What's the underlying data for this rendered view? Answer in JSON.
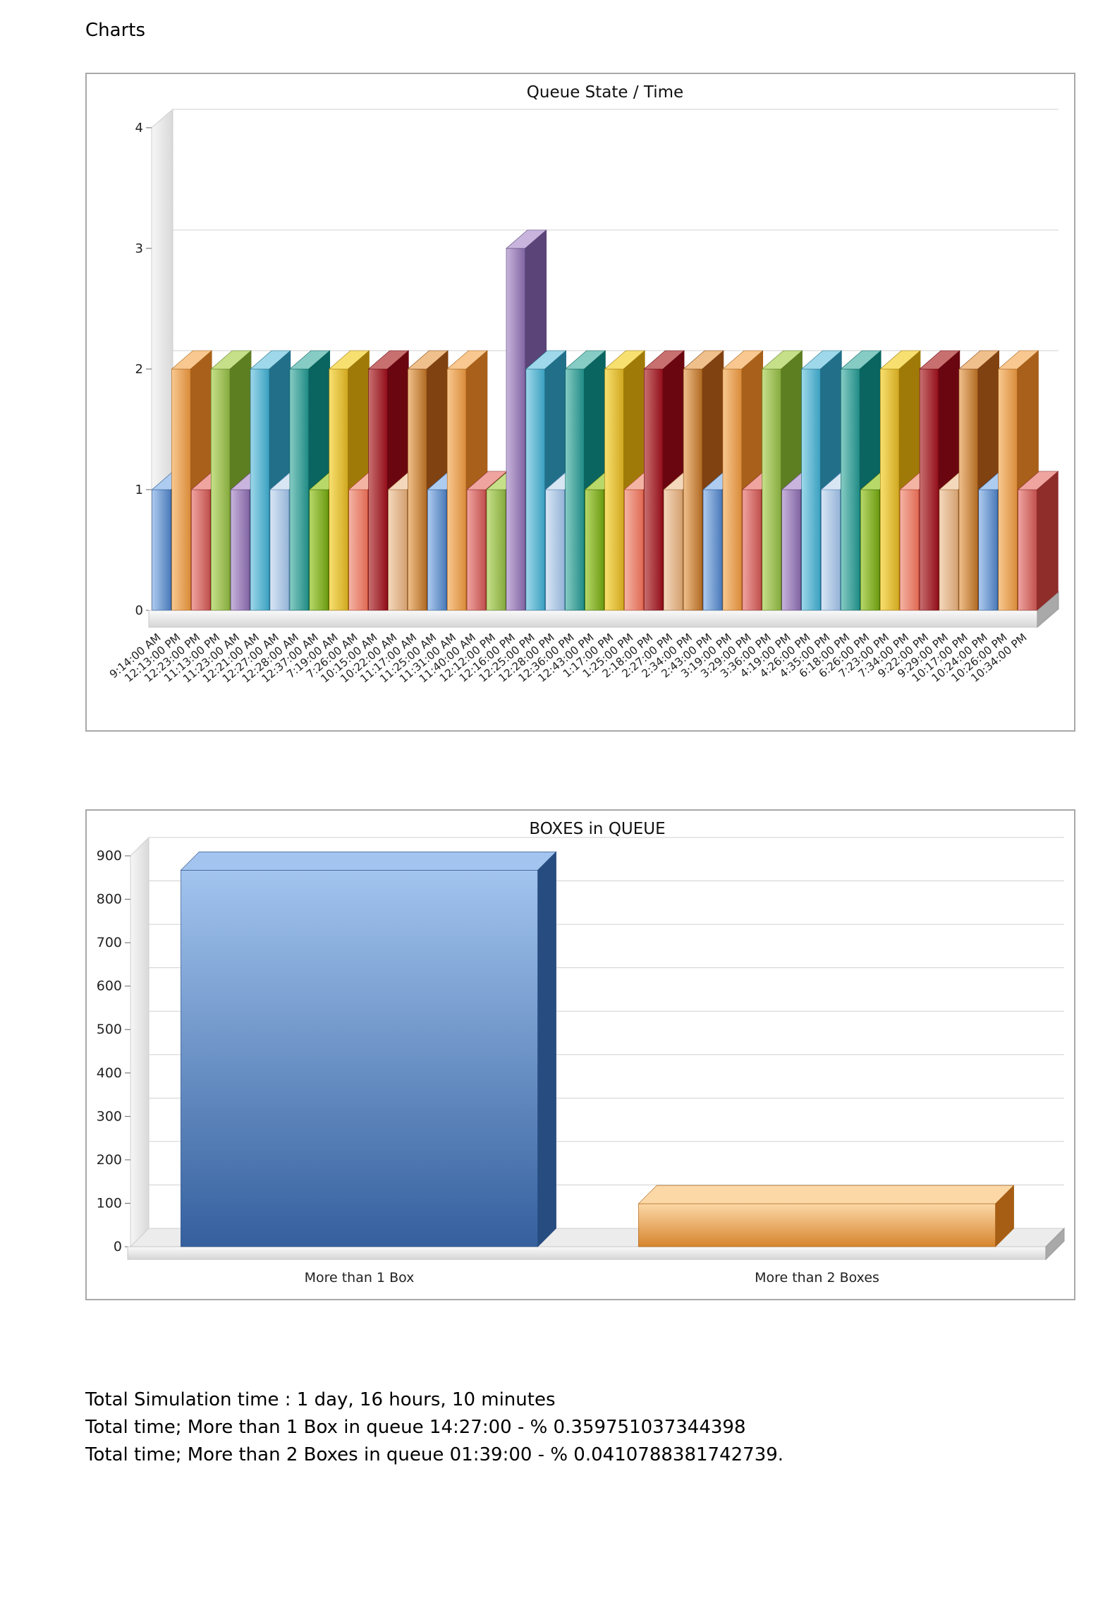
{
  "heading": "Charts",
  "colors": {
    "palette": [
      [
        "#aecbf0",
        "#4a7ab8",
        "#2d5a93"
      ],
      [
        "#f8c890",
        "#d98b3a",
        "#a8601a"
      ],
      [
        "#f0a4a0",
        "#c0504d",
        "#8e2d2a"
      ],
      [
        "#c6e08a",
        "#86aa3e",
        "#5e7e22"
      ],
      [
        "#c8b4dc",
        "#8064a2",
        "#5a4478"
      ],
      [
        "#9ed8ea",
        "#3aa0c0",
        "#226f8a"
      ],
      [
        "#d8e6f4",
        "#95b3d7",
        "#5f86b4"
      ],
      [
        "#86ccc4",
        "#1f8a84",
        "#0a6460"
      ],
      [
        "#b8d86a",
        "#6b9a10",
        "#4a7006"
      ],
      [
        "#f8e070",
        "#d0a820",
        "#a07a08"
      ],
      [
        "#f4b4a4",
        "#e06a54",
        "#b0402c"
      ],
      [
        "#c87070",
        "#920d1a",
        "#6a0610"
      ],
      [
        "#f4d8bc",
        "#d4a070",
        "#a0703c"
      ],
      [
        "#f0c08c",
        "#b06a22",
        "#804210"
      ]
    ],
    "chart2_series": [
      [
        "#a2c4ee",
        "#35609e",
        "#274c80"
      ],
      [
        "#fcd8a6",
        "#d6852e",
        "#a65e14"
      ]
    ]
  },
  "chart_data": [
    {
      "type": "bar",
      "title": "Queue State / Time",
      "xlabel": "",
      "ylabel": "",
      "ylim": [
        0,
        4
      ],
      "yticks": [
        "0",
        "1",
        "2",
        "3",
        "4"
      ],
      "grid": true,
      "legend": "none",
      "categories": [
        "9:14:00 AM",
        "12:13:00 PM",
        "12:23:00 PM",
        "11:13:00 PM",
        "11:23:00 AM",
        "12:21:00 AM",
        "12:27:00 AM",
        "12:28:00 AM",
        "12:37:00 AM",
        "7:19:00 AM",
        "7:26:00 AM",
        "10:15:00 AM",
        "10:22:00 AM",
        "11:17:00 AM",
        "11:25:00 AM",
        "11:31:00 AM",
        "11:40:00 AM",
        "12:12:00 PM",
        "12:16:00 PM",
        "12:25:00 PM",
        "12:28:00 PM",
        "12:36:00 PM",
        "12:43:00 PM",
        "1:17:00 PM",
        "1:25:00 PM",
        "2:18:00 PM",
        "2:27:00 PM",
        "2:34:00 PM",
        "2:43:00 PM",
        "3:19:00 PM",
        "3:29:00 PM",
        "3:36:00 PM",
        "4:19:00 PM",
        "4:26:00 PM",
        "4:35:00 PM",
        "6:18:00 PM",
        "6:26:00 PM",
        "7:23:00 PM",
        "7:34:00 PM",
        "9:22:00 PM",
        "9:29:00 PM",
        "10:17:00 PM",
        "10:24:00 PM",
        "10:26:00 PM",
        "10:34:00 PM"
      ],
      "values": [
        1,
        2,
        1,
        2,
        1,
        2,
        1,
        2,
        1,
        2,
        1,
        2,
        1,
        2,
        1,
        2,
        1,
        1,
        3,
        2,
        1,
        2,
        1,
        2,
        1,
        2,
        1,
        2,
        1,
        2,
        1,
        2,
        1,
        2,
        1,
        2,
        1,
        2,
        1,
        2,
        1,
        2,
        1,
        2,
        1
      ]
    },
    {
      "type": "bar",
      "title": "BOXES in QUEUE",
      "xlabel": "",
      "ylabel": "",
      "ylim": [
        0,
        900
      ],
      "yticks": [
        "0",
        "100",
        "200",
        "300",
        "400",
        "500",
        "600",
        "700",
        "800",
        "900"
      ],
      "grid": true,
      "legend": "none",
      "categories": [
        "More than 1 Box",
        "More than 2 Boxes"
      ],
      "values": [
        867,
        99
      ]
    }
  ],
  "summary": {
    "line1": "Total Simulation time : 1 day, 16 hours, 10 minutes",
    "line2": "Total time; More than 1 Box in queue 14:27:00 - % 0.359751037344398",
    "line3": "Total time; More than 2 Boxes in queue 01:39:00 - % 0.0410788381742739."
  }
}
